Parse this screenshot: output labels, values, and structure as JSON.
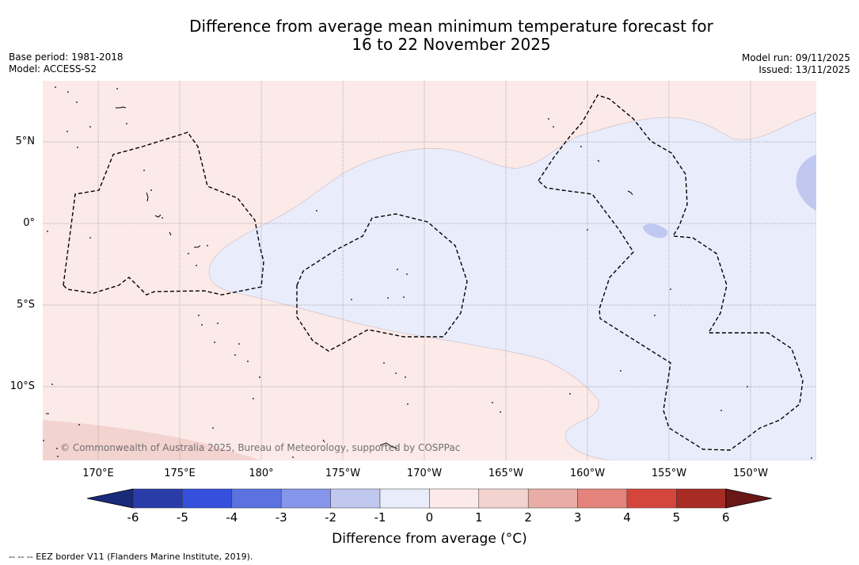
{
  "title": {
    "line1": "Difference from average mean minimum temperature forecast for",
    "line2": "16 to 22 November 2025"
  },
  "meta": {
    "base_period": "Base period: 1981-2018",
    "model": "Model: ACCESS-S2",
    "model_run": "Model run: 09/11/2025",
    "issued": "Issued: 13/11/2025"
  },
  "map": {
    "lat_labels": [
      "5°N",
      "0°",
      "5°S",
      "10°S"
    ],
    "lon_labels": [
      "170°E",
      "175°E",
      "180°",
      "175°W",
      "170°W",
      "165°W",
      "160°W",
      "155°W",
      "150°W"
    ],
    "copyright": "© Commonwealth of Australia 2025, Bureau of Meteorology, supported by COSPPac",
    "colors": {
      "warm_0_1": "#fbeae8",
      "warm_1_2": "#f3d3d0",
      "cool_0_1": "#e9ecfb",
      "cool_1_2": "#c1c8f0"
    }
  },
  "colorbar": {
    "ticks": [
      "-6",
      "-5",
      "-4",
      "-3",
      "-2",
      "-1",
      "0",
      "1",
      "2",
      "3",
      "4",
      "5",
      "6"
    ],
    "colors": [
      "#1a2a7a",
      "#2a3ca8",
      "#3550dc",
      "#5b72e0",
      "#8696ea",
      "#c1c8f0",
      "#e9ecfb",
      "#fbeae8",
      "#f3d3d0",
      "#e9aca6",
      "#e3837b",
      "#d4463c",
      "#a82b25",
      "#6a1717"
    ],
    "label": "Difference from average (°C)"
  },
  "footnote": "-- -- -- EEZ border V11 (Flanders Marine Institute, 2019)."
}
